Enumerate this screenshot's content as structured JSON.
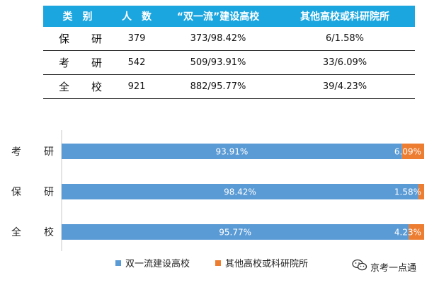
{
  "table": {
    "headers": [
      "类　别",
      "人　数",
      "“双一流”建设高校",
      "其他高校或科研院所"
    ],
    "rows": [
      {
        "cat_a": "保",
        "cat_b": "研",
        "count": "379",
        "dfc": "373/98.42%",
        "other": "6/1.58%"
      },
      {
        "cat_a": "考",
        "cat_b": "研",
        "count": "542",
        "dfc": "509/93.91%",
        "other": "33/6.09%"
      },
      {
        "cat_a": "全",
        "cat_b": "校",
        "count": "921",
        "dfc": "882/95.77%",
        "other": "39/4.23%"
      }
    ]
  },
  "chart_data": {
    "type": "bar",
    "orientation": "horizontal",
    "stacked": true,
    "percent": true,
    "categories": [
      [
        "考",
        "研"
      ],
      [
        "保",
        "研"
      ],
      [
        "全",
        "校"
      ]
    ],
    "series": [
      {
        "name": "双一流建设高校",
        "values": [
          93.91,
          98.42,
          95.77
        ],
        "labels": [
          "93.91%",
          "98.42%",
          "95.77%"
        ],
        "color": "#5b9bd5"
      },
      {
        "name": "其他高校或科研院所",
        "values": [
          6.09,
          1.58,
          4.23
        ],
        "labels": [
          "6.09%",
          "1.58%",
          "4.23%"
        ],
        "color": "#ed7d31"
      }
    ],
    "xlim": [
      0,
      100
    ],
    "legend": "bottom"
  },
  "colors": {
    "header_bg": "#1ba6e0",
    "header_text": "#ffffff"
  },
  "watermark": {
    "text": "京考一点通",
    "icon": "wechat-icon"
  }
}
